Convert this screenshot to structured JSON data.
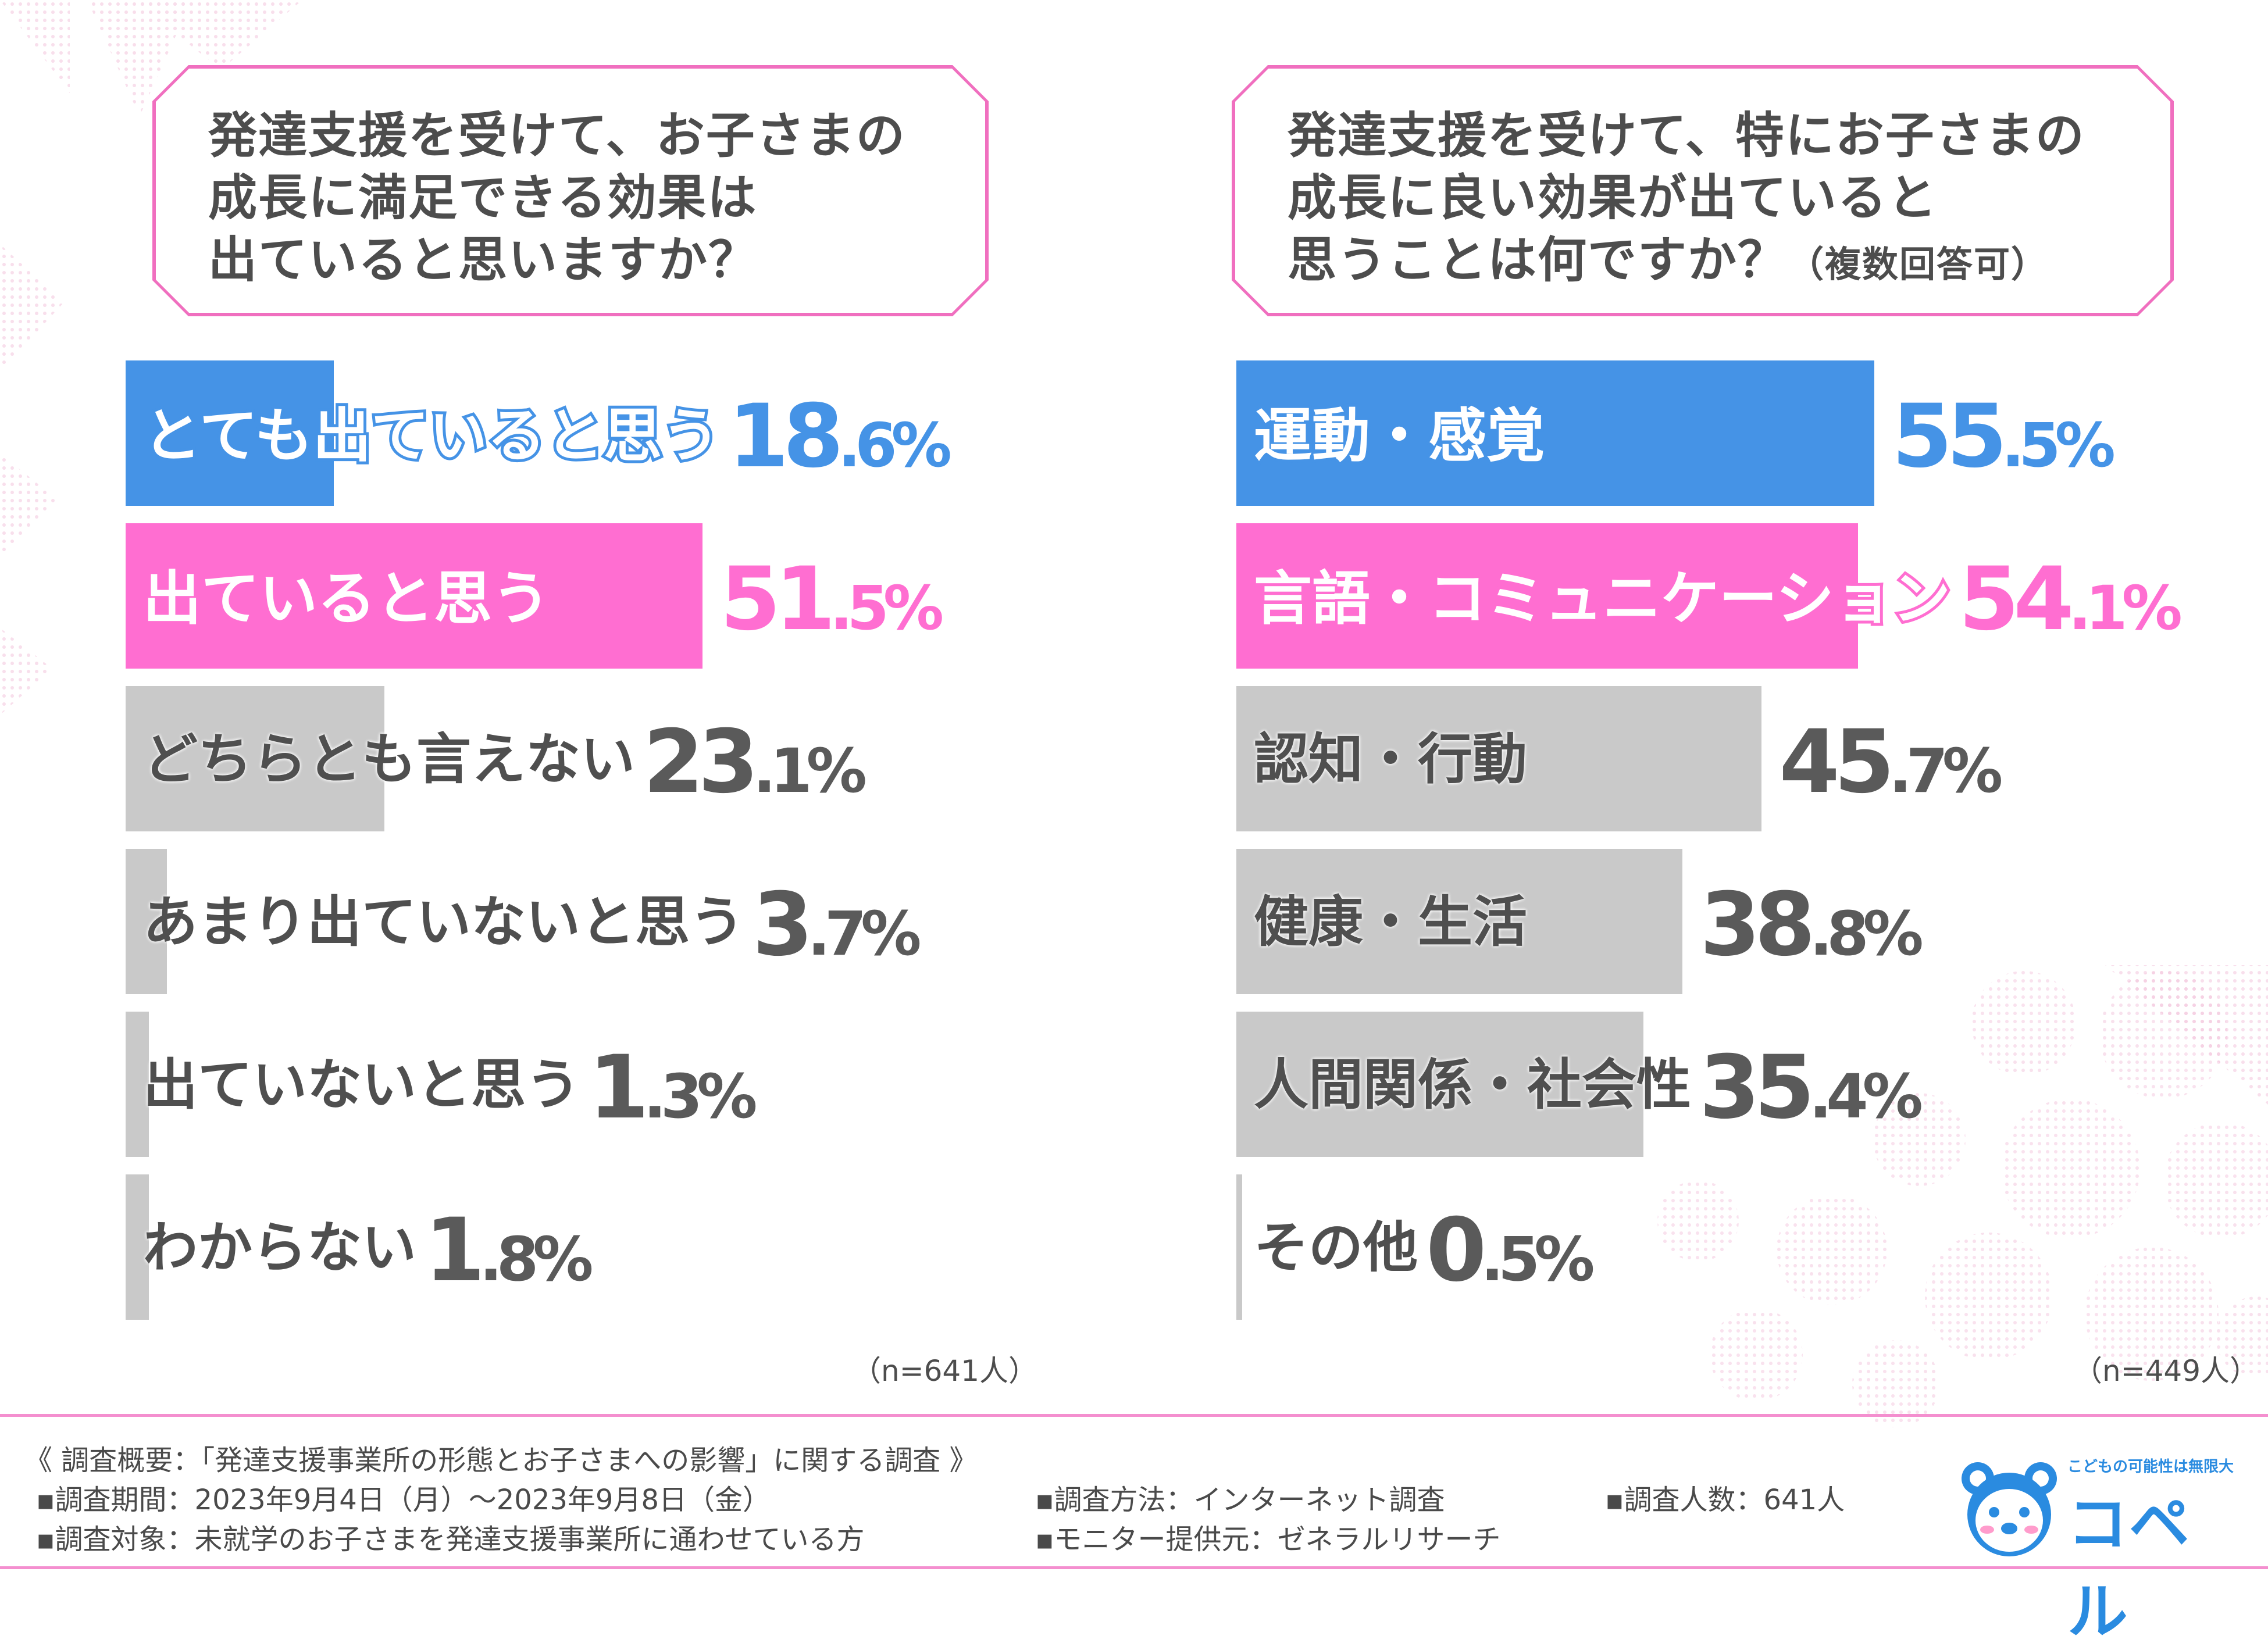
{
  "left_question": {
    "text": "発達支援を受けて、お子さまの\n成長に満足できる効果は\n出ていると思いますか？",
    "note": ""
  },
  "right_question": {
    "text": "発達支援を受けて、特にお子さまの\n成長に良い効果が出ていると\n思うことは何ですか？",
    "note": "（複数回答可）"
  },
  "chart_data": [
    {
      "type": "bar",
      "orientation": "horizontal",
      "categories": [
        "とても出ていると思う",
        "出ていると思う",
        "どちらとも言えない",
        "あまり出ていないと思う",
        "出ていないと思う",
        "わからない"
      ],
      "values": [
        18.6,
        51.5,
        23.1,
        3.7,
        1.3,
        1.8
      ],
      "value_labels": [
        {
          "num": "18",
          "dec": ".6%"
        },
        {
          "num": "51",
          "dec": ".5%"
        },
        {
          "num": "23",
          "dec": ".1%"
        },
        {
          "num": "3",
          "dec": ".7%"
        },
        {
          "num": "1",
          "dec": ".3%"
        },
        {
          "num": "1",
          "dec": ".8%"
        }
      ],
      "unit": "%",
      "xlim": [
        0,
        60
      ],
      "colors": [
        "#4593e6",
        "#ff6ed1",
        "#c9c9c9",
        "#c9c9c9",
        "#c9c9c9",
        "#c9c9c9"
      ],
      "sample_note": "（n=641人）"
    },
    {
      "type": "bar",
      "orientation": "horizontal",
      "categories": [
        "運動・感覚",
        "言語・コミュニケーション",
        "認知・行動",
        "健康・生活",
        "人間関係・社会性",
        "その他"
      ],
      "values": [
        55.5,
        54.1,
        45.7,
        38.8,
        35.4,
        0.5
      ],
      "value_labels": [
        {
          "num": "55",
          "dec": ".5%"
        },
        {
          "num": "54",
          "dec": ".1%"
        },
        {
          "num": "45",
          "dec": ".7%"
        },
        {
          "num": "38",
          "dec": ".8%"
        },
        {
          "num": "35",
          "dec": ".4%"
        },
        {
          "num": "0",
          "dec": ".5%"
        }
      ],
      "unit": "%",
      "xlim": [
        0,
        60
      ],
      "colors": [
        "#4593e6",
        "#ff6ed1",
        "#c9c9c9",
        "#c9c9c9",
        "#c9c9c9",
        "#c9c9c9"
      ],
      "sample_note": "（n=449人）"
    }
  ],
  "footer": {
    "overview": "《 調査概要：「発達支援事業所の形態とお子さまへの影響」に関する調査 》",
    "period": "▪調査期間：2023年9月4日（月）～2023年9月8日（金）",
    "method": "▪調査方法：インターネット調査",
    "count": "▪調査人数：641人",
    "target": "▪調査対象：未就学のお子さまを発達支援事業所に通わせている方",
    "provider": "▪モニター提供元：ゼネラルリサーチ"
  },
  "logo": {
    "tagline": "こどもの可能性は無限大",
    "name": "コペル",
    "color": "#2a8be0"
  }
}
